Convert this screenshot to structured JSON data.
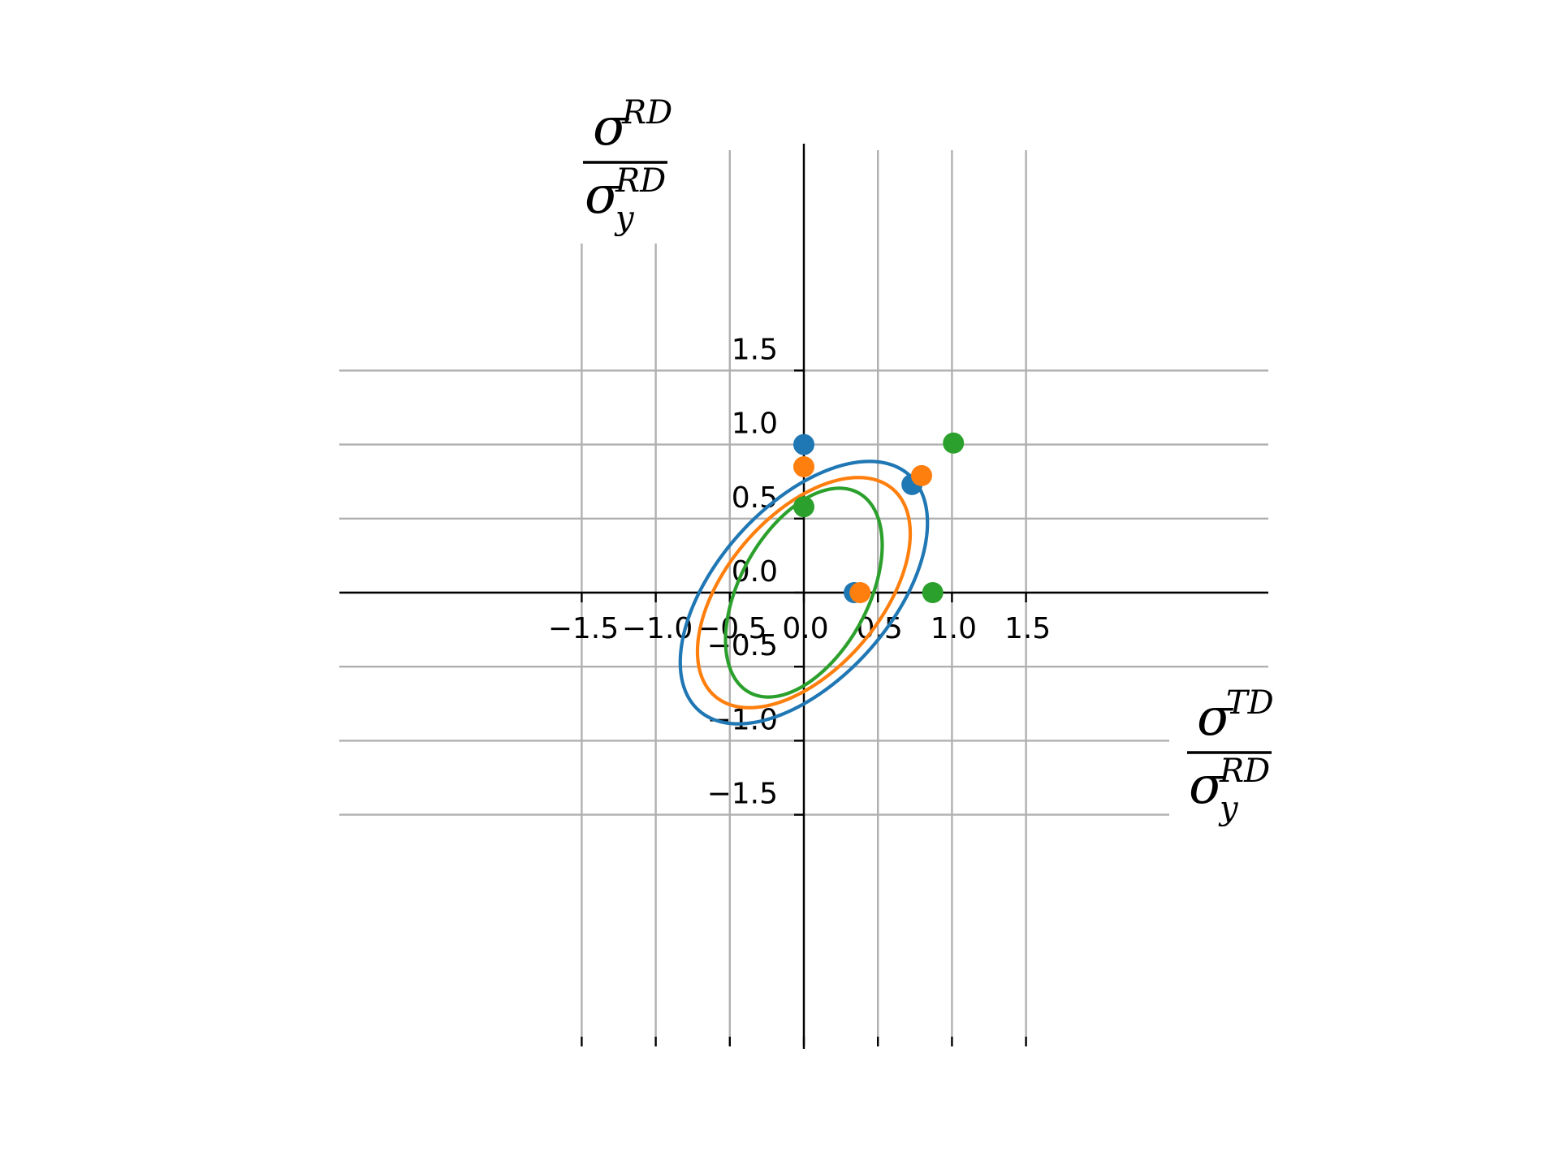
{
  "chart_data": {
    "type": "line",
    "xlim": [
      -1.5,
      1.5
    ],
    "ylim": [
      -1.5,
      1.5
    ],
    "grid": true,
    "x_ticks": [
      -1.5,
      -1.0,
      -0.5,
      0.0,
      0.5,
      1.0,
      1.5
    ],
    "y_ticks": [
      -1.5,
      -1.0,
      -0.5,
      0.0,
      0.5,
      1.0,
      1.5
    ],
    "x_tick_labels": [
      "−1.5",
      "−1.0",
      "−0.5",
      "0.0",
      "0.5",
      "1.0",
      "1.5"
    ],
    "y_tick_labels": [
      "−1.5",
      "−1.0",
      "−0.5",
      "0.0",
      "0.5",
      "1.0",
      "1.5"
    ],
    "xlabel": {
      "numerator": "σ",
      "num_sup": "TD",
      "denominator": "σ",
      "den_sub": "y",
      "den_sup": "RD"
    },
    "ylabel": {
      "numerator": "σ",
      "num_sup": "RD",
      "denominator": "σ",
      "den_sub": "y",
      "den_sup": "RD"
    },
    "series": [
      {
        "color": "#1f77b4",
        "curve": {
          "F": 0.7733,
          "G": 1.0,
          "H": 1.0
        },
        "points": [
          [
            0.0,
            1.0
          ],
          [
            0.73,
            0.73
          ],
          [
            0.34,
            0.0
          ]
        ]
      },
      {
        "color": "#ff7f0e",
        "curve": {
          "F": 1.0,
          "G": 1.3841,
          "H": 1.2436
        },
        "points": [
          [
            0.0,
            0.85
          ],
          [
            0.795,
            0.79
          ],
          [
            0.38,
            0.0
          ]
        ]
      },
      {
        "color": "#2ca02c",
        "curve": {
          "F": 1.0,
          "G": 2.9695,
          "H": 1.5347
        },
        "points": [
          [
            0.0,
            0.58
          ],
          [
            1.01,
            1.01
          ],
          [
            0.87,
            0.0
          ]
        ]
      }
    ]
  }
}
